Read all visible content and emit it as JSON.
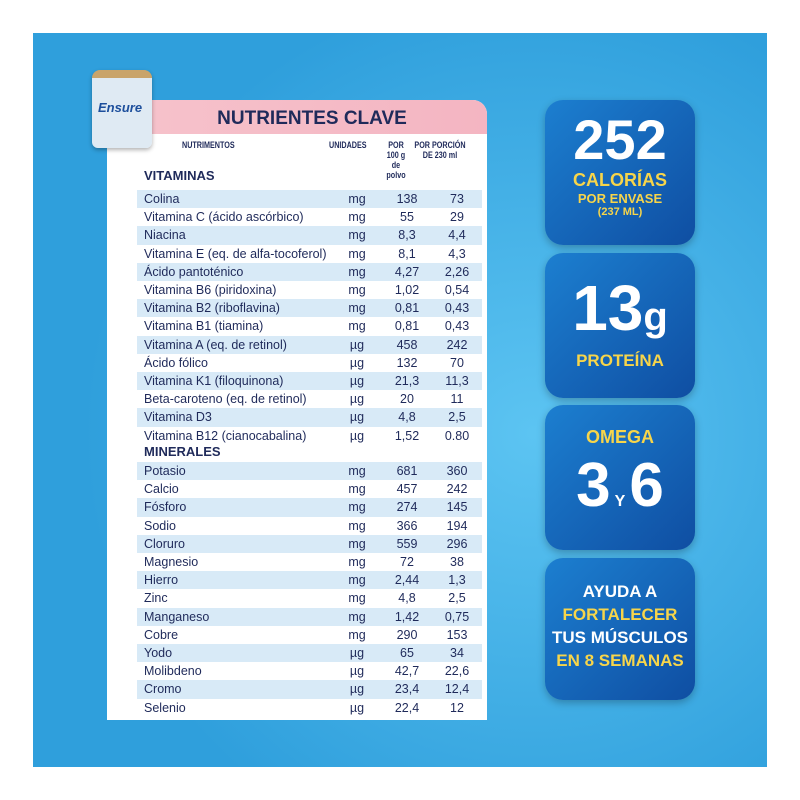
{
  "product": {
    "brand": "Ensure"
  },
  "table": {
    "title": "NUTRIENTES CLAVE",
    "headers": {
      "nutrient": "NUTRIMENTOS",
      "unit": "UNIDADES",
      "per100": "POR 100 g de polvo",
      "perServing": "POR PORCIÓN DE 230 ml"
    },
    "vitamins_label": "VITAMINAS",
    "vitamins": [
      [
        "Colina",
        "mg",
        "138",
        "73"
      ],
      [
        "Vitamina C (ácido ascórbico)",
        "mg",
        "55",
        "29"
      ],
      [
        "Niacina",
        "mg",
        "8,3",
        "4,4"
      ],
      [
        "Vitamina E (eq. de alfa-tocoferol)",
        "mg",
        "8,1",
        "4,3"
      ],
      [
        "Ácido pantoténico",
        "mg",
        "4,27",
        "2,26"
      ],
      [
        "Vitamina B6 (piridoxina)",
        "mg",
        "1,02",
        "0,54"
      ],
      [
        "Vitamina B2 (riboflavina)",
        "mg",
        "0,81",
        "0,43"
      ],
      [
        "Vitamina B1 (tiamina)",
        "mg",
        "0,81",
        "0,43"
      ],
      [
        "Vitamina A (eq. de retinol)",
        "µg",
        "458",
        "242"
      ],
      [
        "Ácido fólico",
        "µg",
        "132",
        "70"
      ],
      [
        "Vitamina K1 (filoquinona)",
        "µg",
        "21,3",
        "11,3"
      ],
      [
        "Beta-caroteno (eq. de retinol)",
        "µg",
        "20",
        "11"
      ],
      [
        "Vitamina D3",
        "µg",
        "4,8",
        "2,5"
      ],
      [
        "Vitamina B12 (cianocabalina)",
        "µg",
        "1,52",
        "0.80"
      ]
    ],
    "minerals_label": "MINERALES",
    "minerals": [
      [
        "Potasio",
        "mg",
        "681",
        "360"
      ],
      [
        "Calcio",
        "mg",
        "457",
        "242"
      ],
      [
        "Fósforo",
        "mg",
        "274",
        "145"
      ],
      [
        "Sodio",
        "mg",
        "366",
        "194"
      ],
      [
        "Cloruro",
        "mg",
        "559",
        "296"
      ],
      [
        "Magnesio",
        "mg",
        "72",
        "38"
      ],
      [
        "Hierro",
        "mg",
        "2,44",
        "1,3"
      ],
      [
        "Zinc",
        "mg",
        "4,8",
        "2,5"
      ],
      [
        "Manganeso",
        "mg",
        "1,42",
        "0,75"
      ],
      [
        "Cobre",
        "mg",
        "290",
        "153"
      ],
      [
        "Yodo",
        "µg",
        "65",
        "34"
      ],
      [
        "Molibdeno",
        "µg",
        "42,7",
        "22,6"
      ],
      [
        "Cromo",
        "µg",
        "23,4",
        "12,4"
      ],
      [
        "Selenio",
        "µg",
        "22,4",
        "12"
      ]
    ]
  },
  "cards": {
    "calories": {
      "value": "252",
      "l1": "CALORÍAS",
      "l2": "POR ENVASE",
      "l3": "(237 ML)"
    },
    "protein": {
      "value": "13",
      "unit": "g",
      "label": "PROTEÍNA"
    },
    "omega": {
      "label": "OMEGA",
      "a": "3",
      "y": "Y",
      "b": "6"
    },
    "muscles": {
      "l1": "AYUDA A",
      "l2": "FORTALECER",
      "l3": "TUS MÚSCULOS",
      "l4": "EN 8 SEMANAS"
    }
  }
}
